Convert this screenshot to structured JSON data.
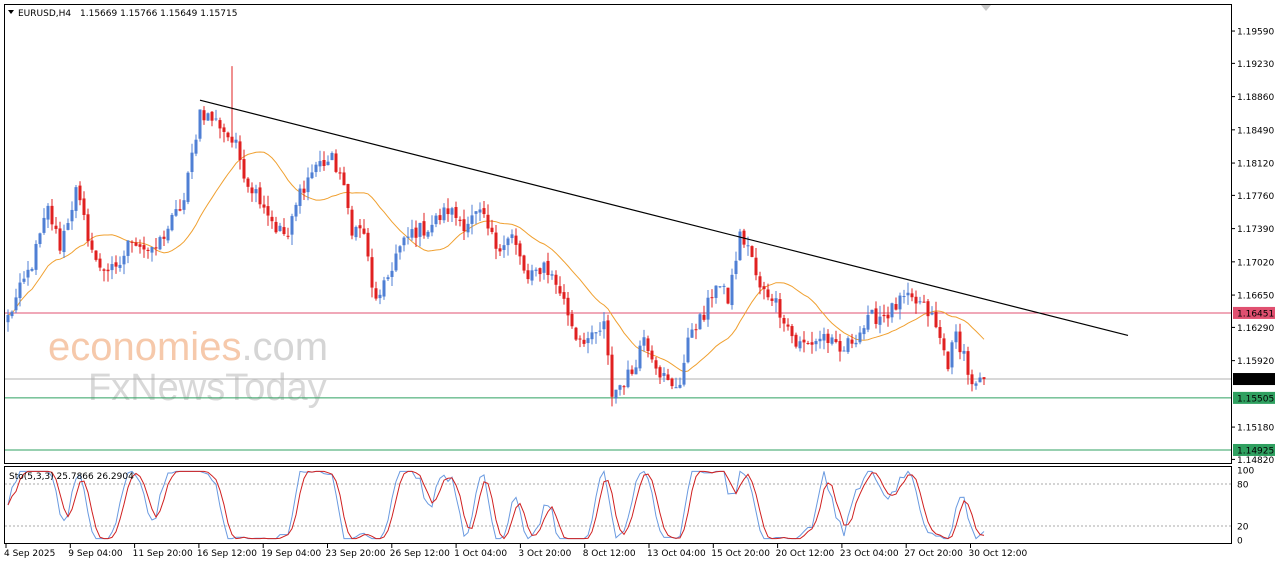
{
  "header": {
    "symbol": "EURUSD,H4",
    "ohlc": "1.15669 1.15766 1.15649 1.15715"
  },
  "watermark": {
    "brand_main": "economies",
    "brand_tld": ".com",
    "brand_sub": "FxNewsToday"
  },
  "oscillator": {
    "label": "Sto(5,3,3) 25.7866 26.2904",
    "levels": [
      "100",
      "80",
      "20",
      "0"
    ]
  },
  "colors": {
    "bull": "#4f7fd4",
    "bear": "#e02020",
    "ma": "#f0a030",
    "trendline": "#000000",
    "resistance": "#e05070",
    "support": "#2fa060",
    "current": "#b0b0b0",
    "stoch_main": "#6a9ae0",
    "stoch_signal": "#d02020"
  },
  "chart_data": {
    "type": "candlestick",
    "title": "EURUSD,H4",
    "price_ticks": [
      "1.19590",
      "1.19230",
      "1.18860",
      "1.18490",
      "1.18120",
      "1.17760",
      "1.17390",
      "1.17020",
      "1.16650",
      "1.16290",
      "1.15920",
      "1.15180",
      "1.14820"
    ],
    "price_range": [
      1.1478,
      1.1988
    ],
    "x_labels": [
      "4 Sep 2025",
      "9 Sep 04:00",
      "11 Sep 20:00",
      "16 Sep 12:00",
      "19 Sep 04:00",
      "23 Sep 20:00",
      "26 Sep 12:00",
      "1 Oct 04:00",
      "3 Oct 20:00",
      "8 Oct 12:00",
      "13 Oct 04:00",
      "15 Oct 20:00",
      "20 Oct 12:00",
      "23 Oct 04:00",
      "27 Oct 20:00",
      "30 Oct 12:00"
    ],
    "horizontal_levels": [
      {
        "name": "resistance",
        "value": 1.16451,
        "label": "1.16451"
      },
      {
        "name": "current",
        "value": 1.15715,
        "label": "1.15715"
      },
      {
        "name": "support-1",
        "value": 1.15505,
        "label": "1.15505"
      },
      {
        "name": "support-2",
        "value": 1.14925,
        "label": "1.14925"
      }
    ],
    "trendline": {
      "from": {
        "bar": 48,
        "price": 1.1882
      },
      "to": {
        "bar": 280,
        "price": 1.162
      }
    },
    "anchors": [
      {
        "bar": 0,
        "price": 1.164
      },
      {
        "bar": 6,
        "price": 1.17
      },
      {
        "bar": 10,
        "price": 1.176
      },
      {
        "bar": 13,
        "price": 1.172
      },
      {
        "bar": 17,
        "price": 1.178
      },
      {
        "bar": 22,
        "price": 1.17
      },
      {
        "bar": 27,
        "price": 1.169
      },
      {
        "bar": 31,
        "price": 1.173
      },
      {
        "bar": 36,
        "price": 1.171
      },
      {
        "bar": 40,
        "price": 1.174
      },
      {
        "bar": 44,
        "price": 1.177
      },
      {
        "bar": 48,
        "price": 1.187
      },
      {
        "bar": 53,
        "price": 1.1855
      },
      {
        "bar": 57,
        "price": 1.183
      },
      {
        "bar": 60,
        "price": 1.179
      },
      {
        "bar": 63,
        "price": 1.1775
      },
      {
        "bar": 67,
        "price": 1.174
      },
      {
        "bar": 70,
        "price": 1.173
      },
      {
        "bar": 73,
        "price": 1.178
      },
      {
        "bar": 77,
        "price": 1.181
      },
      {
        "bar": 81,
        "price": 1.1815
      },
      {
        "bar": 83,
        "price": 1.18
      },
      {
        "bar": 86,
        "price": 1.174
      },
      {
        "bar": 89,
        "price": 1.1735
      },
      {
        "bar": 91,
        "price": 1.167
      },
      {
        "bar": 93,
        "price": 1.166
      },
      {
        "bar": 97,
        "price": 1.171
      },
      {
        "bar": 101,
        "price": 1.1735
      },
      {
        "bar": 105,
        "price": 1.174
      },
      {
        "bar": 110,
        "price": 1.176
      },
      {
        "bar": 114,
        "price": 1.1745
      },
      {
        "bar": 118,
        "price": 1.1755
      },
      {
        "bar": 122,
        "price": 1.172
      },
      {
        "bar": 126,
        "price": 1.173
      },
      {
        "bar": 130,
        "price": 1.168
      },
      {
        "bar": 134,
        "price": 1.17
      },
      {
        "bar": 138,
        "price": 1.167
      },
      {
        "bar": 142,
        "price": 1.162
      },
      {
        "bar": 146,
        "price": 1.1615
      },
      {
        "bar": 149,
        "price": 1.163
      },
      {
        "bar": 151,
        "price": 1.1555
      },
      {
        "bar": 153,
        "price": 1.1565
      },
      {
        "bar": 156,
        "price": 1.158
      },
      {
        "bar": 159,
        "price": 1.162
      },
      {
        "bar": 163,
        "price": 1.158
      },
      {
        "bar": 166,
        "price": 1.156
      },
      {
        "bar": 168,
        "price": 1.157
      },
      {
        "bar": 171,
        "price": 1.163
      },
      {
        "bar": 174,
        "price": 1.164
      },
      {
        "bar": 177,
        "price": 1.168
      },
      {
        "bar": 180,
        "price": 1.166
      },
      {
        "bar": 183,
        "price": 1.173
      },
      {
        "bar": 185,
        "price": 1.172
      },
      {
        "bar": 188,
        "price": 1.167
      },
      {
        "bar": 191,
        "price": 1.1665
      },
      {
        "bar": 194,
        "price": 1.164
      },
      {
        "bar": 197,
        "price": 1.161
      },
      {
        "bar": 200,
        "price": 1.161
      },
      {
        "bar": 204,
        "price": 1.162
      },
      {
        "bar": 208,
        "price": 1.16
      },
      {
        "bar": 212,
        "price": 1.162
      },
      {
        "bar": 216,
        "price": 1.164
      },
      {
        "bar": 220,
        "price": 1.1645
      },
      {
        "bar": 224,
        "price": 1.166
      },
      {
        "bar": 228,
        "price": 1.1655
      },
      {
        "bar": 231,
        "price": 1.164
      },
      {
        "bar": 233,
        "price": 1.1615
      },
      {
        "bar": 235,
        "price": 1.159
      },
      {
        "bar": 237,
        "price": 1.162
      },
      {
        "bar": 239,
        "price": 1.16
      },
      {
        "bar": 241,
        "price": 1.156
      },
      {
        "bar": 243,
        "price": 1.1565
      },
      {
        "bar": 244,
        "price": 1.15715
      }
    ]
  }
}
